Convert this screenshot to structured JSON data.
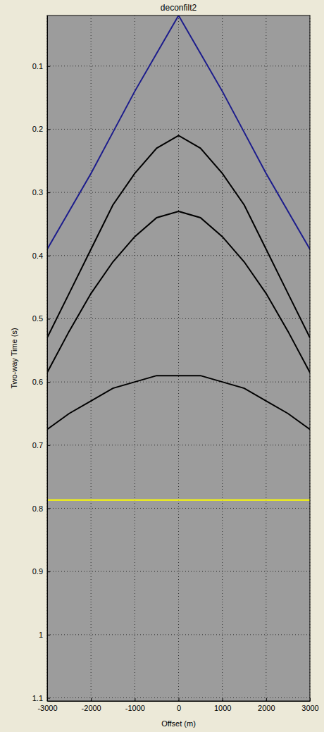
{
  "chart_data": {
    "type": "line",
    "title": "deconfilt2",
    "x_label": "Offset (m)",
    "y_label": "Two-way Time (s)",
    "xlim": [
      -3000,
      3000
    ],
    "xticks": [
      -3000,
      -2000,
      -1000,
      0,
      1000,
      2000,
      3000
    ],
    "ylim": [
      0.02,
      1.105
    ],
    "yticks": [
      0.1,
      0.2,
      0.3,
      0.4,
      0.5,
      0.6,
      0.7,
      0.8,
      0.9,
      1,
      1.1
    ],
    "grid": true,
    "x": [
      -3000,
      -2500,
      -2000,
      -1500,
      -1000,
      -500,
      0,
      500,
      1000,
      1500,
      2000,
      2500,
      3000
    ],
    "series": [
      {
        "color": "#1c1c8c",
        "values": [
          0.39,
          0.33,
          0.27,
          0.205,
          0.14,
          0.08,
          0.02,
          0.08,
          0.14,
          0.205,
          0.27,
          0.33,
          0.39
        ]
      },
      {
        "color": "#000000",
        "values": [
          0.53,
          0.46,
          0.39,
          0.32,
          0.27,
          0.23,
          0.21,
          0.23,
          0.27,
          0.32,
          0.39,
          0.46,
          0.53
        ]
      },
      {
        "color": "#000000",
        "values": [
          0.585,
          0.52,
          0.46,
          0.41,
          0.37,
          0.34,
          0.33,
          0.34,
          0.37,
          0.41,
          0.46,
          0.52,
          0.585
        ]
      },
      {
        "color": "#000000",
        "values": [
          0.675,
          0.65,
          0.63,
          0.61,
          0.6,
          0.59,
          0.59,
          0.59,
          0.6,
          0.61,
          0.63,
          0.65,
          0.675
        ]
      },
      {
        "color": "#ffff00",
        "values": [
          0.787,
          0.787,
          0.787,
          0.787,
          0.787,
          0.787,
          0.787,
          0.787,
          0.787,
          0.787,
          0.787,
          0.787,
          0.787
        ]
      }
    ]
  }
}
